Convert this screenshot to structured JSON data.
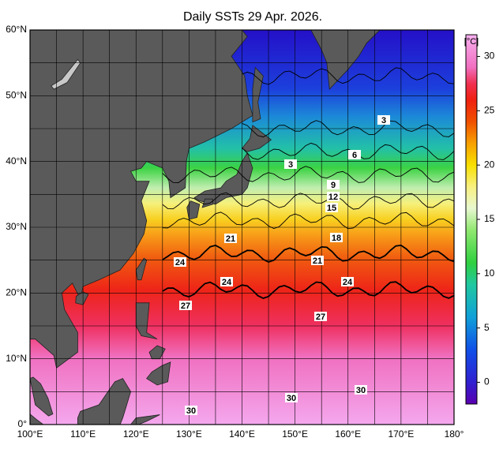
{
  "title": "Daily SSTs 29 Apr. 2026.",
  "map": {
    "lon_ticks": [
      {
        "value": 100,
        "label": "100°E"
      },
      {
        "value": 110,
        "label": "110°E"
      },
      {
        "value": 120,
        "label": "120°E"
      },
      {
        "value": 130,
        "label": "130°E"
      },
      {
        "value": 140,
        "label": "140°E"
      },
      {
        "value": 150,
        "label": "150°E"
      },
      {
        "value": 160,
        "label": "160°E"
      },
      {
        "value": 170,
        "label": "170°E"
      },
      {
        "value": 180,
        "label": "180°"
      }
    ],
    "lat_ticks": [
      {
        "value": 0,
        "label": "0°"
      },
      {
        "value": 10,
        "label": "10°N"
      },
      {
        "value": 20,
        "label": "20°N"
      },
      {
        "value": 30,
        "label": "30°N"
      },
      {
        "value": 40,
        "label": "40°N"
      },
      {
        "value": 50,
        "label": "50°N"
      },
      {
        "value": 60,
        "label": "60°N"
      }
    ],
    "contour_labels": [
      "3",
      "6",
      "3",
      "9",
      "12",
      "15",
      "21",
      "18",
      "24",
      "21",
      "24",
      "24",
      "27",
      "27",
      "30",
      "30",
      "30"
    ]
  },
  "colorbar": {
    "unit": "[°C]",
    "range": [
      -2,
      32
    ],
    "ticks": [
      0,
      5,
      10,
      15,
      20,
      25,
      30
    ]
  }
}
